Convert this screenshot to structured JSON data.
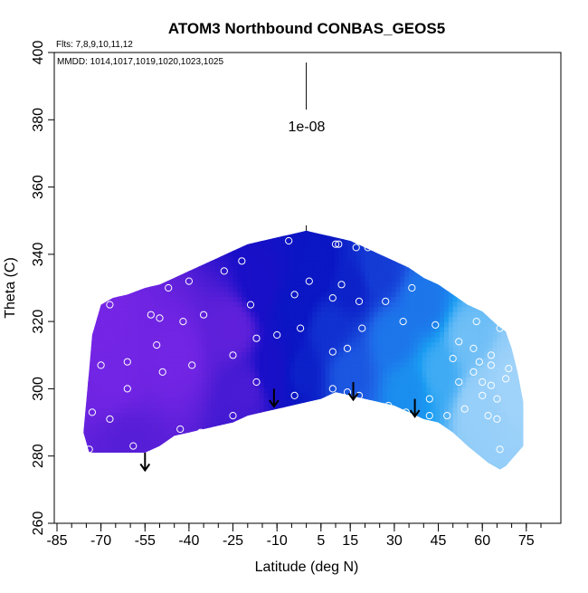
{
  "chart_data": {
    "type": "heatmap",
    "title": "ATOM3 Northbound CONBAS_GEOS5",
    "flights_note": "Flts: 7,8,9,10,11,12",
    "dates_note": "MMDD: 1014,1017,1019,1020,1023,1025",
    "xlabel": "Latitude (deg N)",
    "ylabel": "Theta (C)",
    "xlim": [
      -85,
      80
    ],
    "ylim": [
      260,
      400
    ],
    "x_ticks": [
      -85,
      -70,
      -55,
      -40,
      -25,
      -10,
      5,
      15,
      30,
      45,
      60,
      75
    ],
    "y_ticks": [
      260,
      280,
      300,
      320,
      340,
      360,
      380,
      400
    ],
    "scale_label": "1e-08",
    "grid": false,
    "colormap": [
      "#7f28ea",
      "#5a1fd8",
      "#1a0fc8",
      "#0a16c4",
      "#1e63e6",
      "#1a9cf2",
      "#8ecbf8",
      "#aad8fb"
    ],
    "upper_boundary": [
      [
        -74,
        306
      ],
      [
        -73,
        316
      ],
      [
        -70,
        325
      ],
      [
        -66,
        327
      ],
      [
        -61,
        328
      ],
      [
        -55,
        330
      ],
      [
        -50,
        331
      ],
      [
        -45,
        333
      ],
      [
        -40,
        335
      ],
      [
        -35,
        337
      ],
      [
        -30,
        339
      ],
      [
        -25,
        341
      ],
      [
        -20,
        343
      ],
      [
        -15,
        344
      ],
      [
        -10,
        345
      ],
      [
        -5,
        346
      ],
      [
        0,
        347
      ],
      [
        5,
        346
      ],
      [
        10,
        345
      ],
      [
        15,
        344
      ],
      [
        20,
        342
      ],
      [
        25,
        340
      ],
      [
        30,
        338
      ],
      [
        35,
        336
      ],
      [
        40,
        333
      ],
      [
        45,
        331
      ],
      [
        50,
        328
      ],
      [
        55,
        325
      ],
      [
        60,
        323
      ],
      [
        65,
        319
      ],
      [
        68,
        317
      ],
      [
        70,
        312
      ],
      [
        72,
        305
      ],
      [
        74,
        296
      ]
    ],
    "lower_boundary": [
      [
        74,
        283
      ],
      [
        72,
        281
      ],
      [
        68,
        277
      ],
      [
        66,
        276
      ],
      [
        62,
        278
      ],
      [
        55,
        283
      ],
      [
        50,
        287
      ],
      [
        45,
        290
      ],
      [
        40,
        291
      ],
      [
        35,
        293
      ],
      [
        30,
        295
      ],
      [
        25,
        296
      ],
      [
        20,
        297
      ],
      [
        15,
        298
      ],
      [
        10,
        299
      ],
      [
        5,
        297
      ],
      [
        0,
        296
      ],
      [
        -5,
        295
      ],
      [
        -10,
        294
      ],
      [
        -15,
        293
      ],
      [
        -20,
        292
      ],
      [
        -25,
        290
      ],
      [
        -30,
        289
      ],
      [
        -35,
        288
      ],
      [
        -40,
        287
      ],
      [
        -45,
        286
      ],
      [
        -50,
        283
      ],
      [
        -55,
        281
      ],
      [
        -60,
        281
      ],
      [
        -70,
        281
      ],
      [
        -74,
        281
      ],
      [
        -76,
        287
      ]
    ],
    "field_nodes": [
      {
        "x": -65,
        "y": 305,
        "v": 0.05
      },
      {
        "x": -45,
        "y": 310,
        "v": 0.05
      },
      {
        "x": -25,
        "y": 318,
        "v": 0.12
      },
      {
        "x": -20,
        "y": 300,
        "v": 0.18
      },
      {
        "x": -15,
        "y": 330,
        "v": 0.3
      },
      {
        "x": -12,
        "y": 305,
        "v": 0.3
      },
      {
        "x": -5,
        "y": 325,
        "v": 0.42
      },
      {
        "x": -2,
        "y": 305,
        "v": 0.45
      },
      {
        "x": 3,
        "y": 335,
        "v": 0.42
      },
      {
        "x": 8,
        "y": 318,
        "v": 0.48
      },
      {
        "x": 15,
        "y": 330,
        "v": 0.45
      },
      {
        "x": 15,
        "y": 305,
        "v": 0.55
      },
      {
        "x": 25,
        "y": 335,
        "v": 0.5
      },
      {
        "x": 30,
        "y": 315,
        "v": 0.62
      },
      {
        "x": 35,
        "y": 300,
        "v": 0.68
      },
      {
        "x": 40,
        "y": 325,
        "v": 0.62
      },
      {
        "x": 45,
        "y": 305,
        "v": 0.76
      },
      {
        "x": 55,
        "y": 315,
        "v": 0.82
      },
      {
        "x": 60,
        "y": 295,
        "v": 0.9
      },
      {
        "x": 70,
        "y": 300,
        "v": 0.95
      },
      {
        "x": -60,
        "y": 282,
        "v": 0.15
      },
      {
        "x": -70,
        "y": 320,
        "v": 0.04
      }
    ],
    "sample_points": [
      {
        "lat": -74,
        "theta": 282
      },
      {
        "lat": -73,
        "theta": 293
      },
      {
        "lat": -70,
        "theta": 307
      },
      {
        "lat": -67,
        "theta": 291
      },
      {
        "lat": -67,
        "theta": 325
      },
      {
        "lat": -61,
        "theta": 308
      },
      {
        "lat": -61,
        "theta": 300
      },
      {
        "lat": -59,
        "theta": 283
      },
      {
        "lat": -53,
        "theta": 322
      },
      {
        "lat": -51,
        "theta": 313
      },
      {
        "lat": -50,
        "theta": 321
      },
      {
        "lat": -49,
        "theta": 305
      },
      {
        "lat": -47,
        "theta": 330
      },
      {
        "lat": -43,
        "theta": 288
      },
      {
        "lat": -42,
        "theta": 320
      },
      {
        "lat": -40,
        "theta": 332
      },
      {
        "lat": -39,
        "theta": 307
      },
      {
        "lat": -36,
        "theta": 287
      },
      {
        "lat": -35,
        "theta": 322
      },
      {
        "lat": -28,
        "theta": 335
      },
      {
        "lat": -25,
        "theta": 292
      },
      {
        "lat": -25,
        "theta": 310
      },
      {
        "lat": -22,
        "theta": 338
      },
      {
        "lat": -19,
        "theta": 325
      },
      {
        "lat": -17,
        "theta": 315
      },
      {
        "lat": -17,
        "theta": 302
      },
      {
        "lat": -10,
        "theta": 316
      },
      {
        "lat": -6,
        "theta": 344
      },
      {
        "lat": -4,
        "theta": 328
      },
      {
        "lat": -4,
        "theta": 298
      },
      {
        "lat": -2,
        "theta": 318
      },
      {
        "lat": 1,
        "theta": 332
      },
      {
        "lat": 9,
        "theta": 327
      },
      {
        "lat": 9,
        "theta": 311
      },
      {
        "lat": 9,
        "theta": 300
      },
      {
        "lat": 10,
        "theta": 343
      },
      {
        "lat": 11,
        "theta": 343
      },
      {
        "lat": 12,
        "theta": 331
      },
      {
        "lat": 14,
        "theta": 312
      },
      {
        "lat": 14,
        "theta": 299
      },
      {
        "lat": 17,
        "theta": 342
      },
      {
        "lat": 18,
        "theta": 326
      },
      {
        "lat": 18,
        "theta": 298
      },
      {
        "lat": 19,
        "theta": 318
      },
      {
        "lat": 21,
        "theta": 342
      },
      {
        "lat": 27,
        "theta": 326
      },
      {
        "lat": 28,
        "theta": 295
      },
      {
        "lat": 33,
        "theta": 320
      },
      {
        "lat": 34,
        "theta": 293
      },
      {
        "lat": 36,
        "theta": 330
      },
      {
        "lat": 39,
        "theta": 290
      },
      {
        "lat": 42,
        "theta": 297
      },
      {
        "lat": 42,
        "theta": 292
      },
      {
        "lat": 44,
        "theta": 319
      },
      {
        "lat": 48,
        "theta": 292
      },
      {
        "lat": 50,
        "theta": 309
      },
      {
        "lat": 52,
        "theta": 302
      },
      {
        "lat": 52,
        "theta": 314
      },
      {
        "lat": 54,
        "theta": 294
      },
      {
        "lat": 57,
        "theta": 305
      },
      {
        "lat": 57,
        "theta": 312
      },
      {
        "lat": 58,
        "theta": 320
      },
      {
        "lat": 59,
        "theta": 308
      },
      {
        "lat": 60,
        "theta": 302
      },
      {
        "lat": 60,
        "theta": 298
      },
      {
        "lat": 62,
        "theta": 292
      },
      {
        "lat": 63,
        "theta": 307
      },
      {
        "lat": 63,
        "theta": 310
      },
      {
        "lat": 63,
        "theta": 301
      },
      {
        "lat": 65,
        "theta": 297
      },
      {
        "lat": 65,
        "theta": 291
      },
      {
        "lat": 66,
        "theta": 318
      },
      {
        "lat": 66,
        "theta": 282
      },
      {
        "lat": 68,
        "theta": 303
      },
      {
        "lat": 69,
        "theta": 306
      }
    ],
    "flux_arrows": [
      {
        "lat": -55,
        "theta": 281,
        "value": -1.8
      },
      {
        "lat": -11,
        "theta": 300,
        "value": -1.8
      },
      {
        "lat": 16,
        "theta": 302,
        "value": -1.8
      },
      {
        "lat": 37,
        "theta": 297,
        "value": -1.8
      }
    ],
    "scale_arrow": {
      "lat": 0,
      "theta_top": 397,
      "theta_bottom": 383
    },
    "upper_tick": {
      "lat": 0,
      "theta": 347
    }
  }
}
